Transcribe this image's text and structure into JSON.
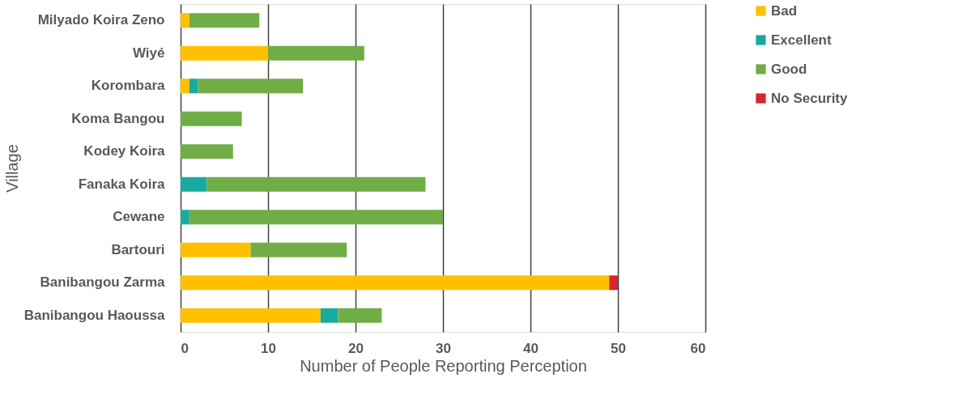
{
  "chart_data": {
    "type": "bar",
    "orientation": "horizontal",
    "stacked": true,
    "xlabel": "Number of People Reporting Perception",
    "ylabel": "Village",
    "categories": [
      "Milyado Koira Zeno",
      "Wiyé",
      "Korombara",
      "Koma Bangou",
      "Kodey Koira",
      "Fanaka Koira",
      "Cewane",
      "Bartouri",
      "Banibangou Zarma",
      "Banibangou Haoussa"
    ],
    "series": [
      {
        "name": "Bad",
        "color": "#ffc000",
        "values": [
          1,
          10,
          1,
          null,
          null,
          null,
          null,
          8,
          49,
          16
        ]
      },
      {
        "name": "Excellent",
        "color": "#1aaba0",
        "values": [
          null,
          null,
          1,
          null,
          null,
          3,
          1,
          null,
          null,
          2
        ]
      },
      {
        "name": "Good",
        "color": "#70ad47",
        "values": [
          8,
          11,
          12,
          7,
          6,
          25,
          29,
          11,
          null,
          5
        ]
      },
      {
        "name": "No Security",
        "color": "#d9252d",
        "values": [
          null,
          null,
          null,
          null,
          null,
          null,
          null,
          null,
          1,
          null
        ]
      }
    ],
    "xlim": [
      0,
      60
    ],
    "xticks": [
      0,
      10,
      20,
      30,
      40,
      50,
      60
    ],
    "grid": "x",
    "legend": "right"
  }
}
